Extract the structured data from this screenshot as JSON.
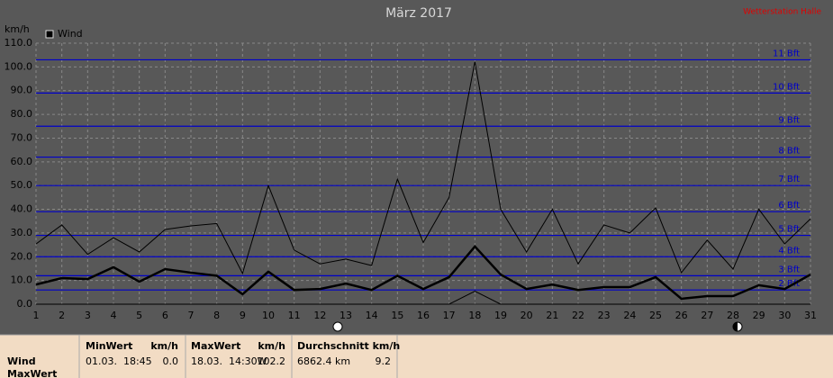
{
  "chart_data": {
    "type": "line",
    "title": "März 2017",
    "station": "Wetterstation Halle",
    "y_label": "km/h",
    "x": [
      1,
      2,
      3,
      4,
      5,
      6,
      7,
      8,
      9,
      10,
      11,
      12,
      13,
      14,
      15,
      16,
      17,
      18,
      19,
      20,
      21,
      22,
      23,
      24,
      25,
      26,
      27,
      28,
      29,
      30,
      31
    ],
    "xlim": [
      1,
      31
    ],
    "xticks": [
      1,
      2,
      3,
      4,
      5,
      6,
      7,
      8,
      9,
      10,
      11,
      12,
      13,
      14,
      15,
      16,
      17,
      18,
      19,
      20,
      21,
      22,
      23,
      24,
      25,
      26,
      27,
      28,
      29,
      30,
      31
    ],
    "ylim": [
      0,
      110
    ],
    "yticks": [
      {
        "value": 0,
        "label": "0.0"
      },
      {
        "value": 10,
        "label": "10.0"
      },
      {
        "value": 20,
        "label": "20.0"
      },
      {
        "value": 30,
        "label": "30.0"
      },
      {
        "value": 40,
        "label": "40.0"
      },
      {
        "value": 50,
        "label": "50.0"
      },
      {
        "value": 60,
        "label": "60.0"
      },
      {
        "value": 70,
        "label": "70.0"
      },
      {
        "value": 80,
        "label": "80.0"
      },
      {
        "value": 90,
        "label": "90.0"
      },
      {
        "value": 100,
        "label": "100.0"
      },
      {
        "value": 110,
        "label": "110.0"
      }
    ],
    "grid": true,
    "hlines_color": "#0000c8",
    "hlines": [
      {
        "value": 6,
        "label": "2 Bft"
      },
      {
        "value": 12,
        "label": "3 Bft"
      },
      {
        "value": 20,
        "label": "4 Bft"
      },
      {
        "value": 29,
        "label": "5 Bft"
      },
      {
        "value": 39,
        "label": "6 Bft"
      },
      {
        "value": 50,
        "label": "7 Bft"
      },
      {
        "value": 62,
        "label": "8 Bft"
      },
      {
        "value": 75,
        "label": "9 Bft"
      },
      {
        "value": 89,
        "label": "10 Bft"
      },
      {
        "value": 103,
        "label": "11 Bft"
      }
    ],
    "series": [
      {
        "name": "Wind",
        "color": "#000000",
        "width": 2.5,
        "values": [
          8.3,
          11,
          10.6,
          15.6,
          9.5,
          14.8,
          13.3,
          12,
          4.2,
          13.7,
          6,
          6.4,
          8.7,
          6,
          12,
          6.4,
          11.4,
          24.3,
          12.5,
          6.4,
          8.3,
          6,
          7.2,
          7.2,
          11.4,
          2.3,
          3.4,
          3.4,
          8,
          6.4,
          12.5
        ]
      },
      {
        "color": "#000000",
        "width": 1,
        "values": [
          25.4,
          33.4,
          21,
          28,
          22,
          31.5,
          33,
          34,
          13,
          50,
          22.8,
          17,
          19,
          16.3,
          52.7,
          26,
          45,
          102.2,
          40,
          22,
          40,
          17,
          33.4,
          30,
          40.6,
          13.3,
          27,
          14.8,
          40,
          25.4,
          36
        ]
      },
      {
        "color": "#000000",
        "width": 1,
        "values": [
          0,
          0,
          0,
          0,
          0,
          0,
          0,
          0,
          0,
          0,
          0,
          0,
          0,
          0,
          0,
          0,
          0,
          5.5,
          0,
          0,
          0,
          0,
          0,
          0,
          0,
          0,
          0,
          0,
          0,
          0,
          0
        ]
      }
    ]
  },
  "summary": {
    "rows": [
      "Wind",
      "MaxWert"
    ],
    "columns": [
      {
        "header": "MinWert",
        "unit": "km/h",
        "date": "01.03.  18:45",
        "value": "0.0"
      },
      {
        "header": "MaxWert",
        "unit": "km/h",
        "date": "18.03.  14:30W",
        "value": "102.2"
      },
      {
        "header": "Durchschnitt km/h",
        "date": "6862.4 km",
        "value": "9.2"
      }
    ]
  }
}
